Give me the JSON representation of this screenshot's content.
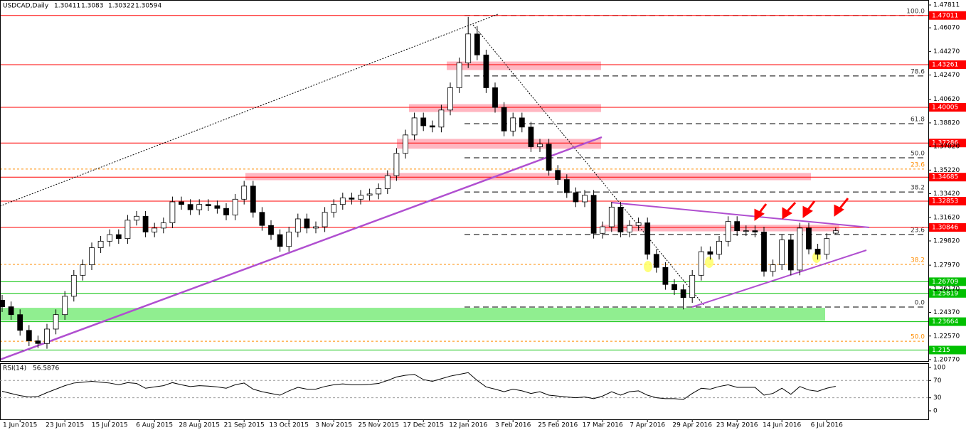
{
  "chart_data": {
    "type": "candlestick",
    "title": "USDCAD,Daily",
    "categories": [
      null,
      null,
      "1 Jun 2015",
      null,
      null,
      null,
      null,
      "23 Jun 2015",
      null,
      null,
      null,
      null,
      "15 Jul 2015",
      null,
      null,
      null,
      null,
      "6 Aug 2015",
      null,
      null,
      null,
      null,
      "28 Aug 2015",
      null,
      null,
      null,
      null,
      "21 Sep 2015",
      null,
      null,
      null,
      null,
      "13 Oct 2015",
      null,
      null,
      null,
      null,
      "3 Nov 2015",
      null,
      null,
      null,
      null,
      "25 Nov 2015",
      null,
      null,
      null,
      null,
      "17 Dec 2015",
      null,
      null,
      null,
      null,
      "12 Jan 2016",
      null,
      null,
      null,
      null,
      "3 Feb 2016",
      null,
      null,
      null,
      null,
      "25 Feb 2016",
      null,
      null,
      null,
      null,
      "17 Mar 2016",
      null,
      null,
      null,
      null,
      "7 Apr 2016",
      null,
      null,
      null,
      null,
      "29 Apr 2016",
      null,
      null,
      null,
      null,
      "23 May 2016",
      null,
      null,
      null,
      null,
      "14 Jun 2016",
      null,
      null,
      null,
      null,
      "6 Jul 2016",
      null
    ],
    "open": [
      1.253,
      1.248,
      1.242,
      1.23,
      1.222,
      1.22,
      1.231,
      1.242,
      1.256,
      1.272,
      1.28,
      1.293,
      1.298,
      1.303,
      1.3,
      1.314,
      1.317,
      1.305,
      1.308,
      1.312,
      1.328,
      1.326,
      1.322,
      1.326,
      1.325,
      1.323,
      1.318,
      1.33,
      1.34,
      1.32,
      1.31,
      1.303,
      1.294,
      1.305,
      1.315,
      1.308,
      1.309,
      1.32,
      1.326,
      1.331,
      1.33,
      1.333,
      1.334,
      1.338,
      1.348,
      1.365,
      1.379,
      1.392,
      1.386,
      1.385,
      1.398,
      1.415,
      1.434,
      1.456,
      1.44,
      1.415,
      1.4,
      1.382,
      1.392,
      1.385,
      1.37,
      1.372,
      1.352,
      1.345,
      1.335,
      1.328,
      1.333,
      1.304,
      1.309,
      1.324,
      1.305,
      1.31,
      1.312,
      1.288,
      1.278,
      1.265,
      1.261,
      1.255,
      1.272,
      1.29,
      1.288,
      1.298,
      1.313,
      1.306,
      1.306,
      1.305,
      1.275,
      1.28,
      1.299,
      1.276,
      1.308,
      1.292,
      1.288,
      1.30411
    ],
    "high": [
      1.257,
      1.252,
      1.246,
      1.234,
      1.226,
      1.235,
      1.246,
      1.26,
      1.276,
      1.284,
      1.297,
      1.302,
      1.307,
      1.307,
      1.318,
      1.321,
      1.321,
      1.312,
      1.316,
      1.332,
      1.332,
      1.33,
      1.33,
      1.33,
      1.329,
      1.327,
      1.334,
      1.344,
      1.344,
      1.324,
      1.314,
      1.307,
      1.309,
      1.319,
      1.319,
      1.313,
      1.324,
      1.33,
      1.335,
      1.335,
      1.337,
      1.338,
      1.342,
      1.352,
      1.369,
      1.383,
      1.396,
      1.396,
      1.39,
      1.402,
      1.419,
      1.438,
      1.469,
      1.462,
      1.444,
      1.419,
      1.404,
      1.396,
      1.396,
      1.389,
      1.376,
      1.376,
      1.356,
      1.349,
      1.339,
      1.337,
      1.337,
      1.313,
      1.328,
      1.328,
      1.314,
      1.316,
      1.316,
      1.292,
      1.282,
      1.269,
      1.265,
      1.276,
      1.294,
      1.294,
      1.302,
      1.317,
      1.317,
      1.31,
      1.31,
      1.309,
      1.284,
      1.303,
      1.303,
      1.312,
      1.312,
      1.296,
      1.304,
      1.3083
    ],
    "low": [
      1.244,
      1.238,
      1.226,
      1.218,
      1.2165,
      1.216,
      1.227,
      1.238,
      1.252,
      1.268,
      1.276,
      1.289,
      1.294,
      1.296,
      1.296,
      1.31,
      1.301,
      1.301,
      1.304,
      1.308,
      1.322,
      1.318,
      1.318,
      1.321,
      1.319,
      1.314,
      1.314,
      1.326,
      1.316,
      1.306,
      1.299,
      1.29,
      1.29,
      1.301,
      1.304,
      1.304,
      1.305,
      1.316,
      1.322,
      1.326,
      1.326,
      1.329,
      1.33,
      1.334,
      1.344,
      1.361,
      1.375,
      1.382,
      1.381,
      1.381,
      1.394,
      1.411,
      1.43,
      1.436,
      1.411,
      1.396,
      1.378,
      1.378,
      1.381,
      1.366,
      1.366,
      1.348,
      1.341,
      1.331,
      1.324,
      1.324,
      1.3,
      1.3,
      1.305,
      1.301,
      1.301,
      1.306,
      1.284,
      1.274,
      1.261,
      1.257,
      1.246,
      1.251,
      1.268,
      1.284,
      1.284,
      1.294,
      1.302,
      1.302,
      1.301,
      1.271,
      1.271,
      1.276,
      1.272,
      1.272,
      1.288,
      1.284,
      1.284,
      1.30322
    ],
    "close": [
      1.248,
      1.242,
      1.23,
      1.222,
      1.22,
      1.231,
      1.242,
      1.256,
      1.272,
      1.28,
      1.293,
      1.298,
      1.303,
      1.3,
      1.314,
      1.317,
      1.305,
      1.308,
      1.312,
      1.328,
      1.326,
      1.322,
      1.326,
      1.325,
      1.323,
      1.318,
      1.33,
      1.34,
      1.32,
      1.31,
      1.303,
      1.294,
      1.305,
      1.315,
      1.308,
      1.309,
      1.32,
      1.326,
      1.331,
      1.33,
      1.333,
      1.334,
      1.338,
      1.348,
      1.365,
      1.379,
      1.392,
      1.386,
      1.385,
      1.398,
      1.415,
      1.434,
      1.456,
      1.44,
      1.415,
      1.4,
      1.382,
      1.392,
      1.385,
      1.37,
      1.372,
      1.352,
      1.345,
      1.335,
      1.328,
      1.333,
      1.304,
      1.309,
      1.324,
      1.305,
      1.31,
      1.312,
      1.288,
      1.278,
      1.265,
      1.261,
      1.255,
      1.272,
      1.29,
      1.288,
      1.298,
      1.313,
      1.306,
      1.306,
      1.305,
      1.275,
      1.28,
      1.299,
      1.276,
      1.308,
      1.292,
      1.288,
      1.3,
      1.30594
    ],
    "up_color": "#ffffff",
    "down_color": "#000000",
    "ylim": [
      1.2066,
      1.4819
    ],
    "yticks": [
      1.47811,
      {
        "value": 1.4607,
        "label": "1.46070"
      },
      {
        "value": 1.4427,
        "label": "1.44270"
      },
      {
        "value": 1.4247,
        "label": "1.42470"
      },
      {
        "value": 1.4062,
        "label": "1.40620"
      },
      {
        "value": 1.3882,
        "label": "1.38820"
      },
      {
        "value": 1.3702,
        "label": "1.37020"
      },
      {
        "value": 1.3522,
        "label": "1.35220"
      },
      {
        "value": 1.3342,
        "label": "1.33420"
      },
      {
        "value": 1.3162,
        "label": "1.31620"
      },
      {
        "value": 1.2982,
        "label": "1.29820"
      },
      {
        "value": 1.2797,
        "label": "1.27970"
      },
      {
        "value": 1.2617,
        "label": "1.26170"
      },
      {
        "value": 1.2437,
        "label": "1.24370"
      },
      {
        "value": 1.2257,
        "label": "1.22570"
      },
      {
        "value": 1.2077,
        "label": "1.20770"
      }
    ],
    "levels": [
      {
        "value": 1.47011,
        "color": "#ff0000"
      },
      {
        "value": 1.43261,
        "color": "#ff0000"
      },
      {
        "value": 1.40005,
        "color": "#ff0000"
      },
      {
        "value": 1.37286,
        "color": "#ff0000"
      },
      {
        "value": 1.34685,
        "color": "#ff0000"
      },
      {
        "value": 1.32853,
        "color": "#ff0000"
      },
      {
        "value": 1.30846,
        "color": "#ff0000"
      },
      {
        "value": 1.26709,
        "color": "#00c000"
      },
      {
        "value": 1.25819,
        "color": "#00c000"
      },
      {
        "value": 1.23664,
        "color": "#00c000"
      },
      {
        "value": 1.215,
        "color": "#00c000"
      }
    ],
    "zones": [
      {
        "low": 1.4285,
        "high": 1.435,
        "color": "#ffb6c1"
      },
      {
        "low": 1.3965,
        "high": 1.4025,
        "color": "#ffb6c1"
      },
      {
        "low": 1.3685,
        "high": 1.376,
        "color": "#ffb6c1"
      },
      {
        "low": 1.3445,
        "high": 1.35,
        "color": "#ffb6c1"
      },
      {
        "low": 1.3055,
        "high": 1.3105,
        "color": "#ffb6c1"
      },
      {
        "low": 1.2375,
        "high": 1.2472,
        "color": "#90ee90"
      }
    ],
    "fib_levels": [
      {
        "label": "100.0",
        "value": 1.4701,
        "color": "#000000"
      },
      {
        "label": "78.6",
        "value": 1.424,
        "color": "#000000"
      },
      {
        "label": "61.8",
        "value": 1.3876,
        "color": "#000000"
      },
      {
        "label": "50.0",
        "value": 1.3616,
        "color": "#000000"
      },
      {
        "label": "38.2",
        "value": 1.3355,
        "color": "#000000"
      },
      {
        "label": "23.6",
        "value": 1.3031,
        "color": "#000000"
      },
      {
        "label": "0.0",
        "value": 1.2478,
        "color": "#000000"
      },
      {
        "label": "23.6",
        "value": 1.353,
        "color": "#ff8c00"
      },
      {
        "label": "38.2",
        "value": 1.2803,
        "color": "#ff8c00"
      },
      {
        "label": "50.0",
        "value": 1.2217,
        "color": "#ff8c00"
      }
    ],
    "rsi": {
      "title": "RSI(14)",
      "color": "#000000",
      "ylim": [
        -19.7,
        109.8
      ],
      "yticks": [
        100,
        70,
        30,
        0
      ],
      "values": [
        45,
        40,
        35,
        32,
        33,
        42,
        50,
        58,
        64,
        66,
        68,
        66,
        64,
        60,
        65,
        63,
        52,
        55,
        58,
        65,
        60,
        56,
        58,
        57,
        55,
        52,
        60,
        64,
        50,
        44,
        40,
        36,
        46,
        54,
        50,
        50,
        56,
        60,
        62,
        60,
        60,
        61,
        63,
        70,
        78,
        82,
        84,
        72,
        68,
        74,
        80,
        84,
        88,
        70,
        55,
        50,
        44,
        50,
        46,
        40,
        44,
        36,
        34,
        32,
        30,
        32,
        28,
        34,
        44,
        36,
        44,
        46,
        36,
        30,
        28,
        28,
        26,
        40,
        52,
        50,
        56,
        60,
        54,
        54,
        54,
        36,
        40,
        52,
        38,
        56,
        48,
        45,
        52,
        56.5876
      ]
    }
  }
}
